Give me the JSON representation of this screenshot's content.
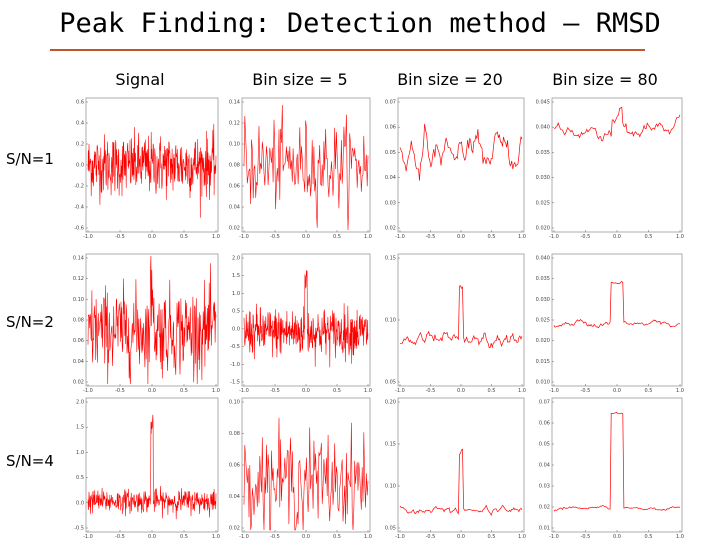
{
  "title": "Peak Finding: Detection method – RMSD",
  "columns": [
    "Signal",
    "Bin size = 5",
    "Bin size = 20",
    "Bin size = 80"
  ],
  "rows": [
    "S/N=1",
    "S/N=2",
    "S/N=4"
  ],
  "colors": {
    "trace": "#ff0000",
    "rule": "#c0542a",
    "frame": "#9a9a9a"
  },
  "chart_data": {
    "type": "line",
    "x_ticks": [
      "-1.0",
      "-0.5",
      "0.0",
      "0.5",
      "1.0"
    ],
    "panels": [
      {
        "row": "S/N=1",
        "column": "Signal",
        "y_ticks": [
          "0.6",
          "0.4",
          "0.2",
          "0.0",
          "-0.2",
          "-0.4",
          "-0.6"
        ],
        "ylim": [
          -0.6,
          0.6
        ],
        "noise": 0.14,
        "base": 0.0,
        "peak": 0.0,
        "peak_width": 0.0,
        "n": 400,
        "smooth": 1
      },
      {
        "row": "S/N=1",
        "column": "Bin size = 5",
        "y_ticks": [
          "0.14",
          "0.12",
          "0.10",
          "0.08",
          "0.06",
          "0.04",
          "0.02"
        ],
        "ylim": [
          0.02,
          0.14
        ],
        "noise": 0.02,
        "base": 0.08,
        "peak": 0.0,
        "peak_width": 0.0,
        "n": 150,
        "smooth": 1
      },
      {
        "row": "S/N=1",
        "column": "Bin size = 20",
        "y_ticks": [
          "0.07",
          "0.06",
          "0.05",
          "0.04",
          "0.03",
          "0.02"
        ],
        "ylim": [
          0.02,
          0.07
        ],
        "noise": 0.006,
        "base": 0.05,
        "peak": 0.0,
        "peak_width": 0.0,
        "n": 120,
        "smooth": 2
      },
      {
        "row": "S/N=1",
        "column": "Bin size = 80",
        "y_ticks": [
          "0.045",
          "0.040",
          "0.035",
          "0.030",
          "0.025",
          "0.020"
        ],
        "ylim": [
          0.02,
          0.045
        ],
        "noise": 0.0015,
        "base": 0.039,
        "peak": 0.003,
        "peak_width": 0.08,
        "n": 120,
        "smooth": 3
      },
      {
        "row": "S/N=2",
        "column": "Signal",
        "y_ticks": [
          "0.14",
          "0.12",
          "0.10",
          "0.08",
          "0.06",
          "0.04",
          "0.02"
        ],
        "ylim": [
          0.02,
          0.14
        ],
        "noise": 0.02,
        "base": 0.07,
        "peak": 0.035,
        "peak_width": 0.03,
        "n": 300,
        "smooth": 1
      },
      {
        "row": "S/N=2",
        "column": "Bin size = 5",
        "y_ticks": [
          "2.0",
          "1.5",
          "1.0",
          "0.5",
          "0.0",
          "-0.5",
          "-1.0",
          "-1.5"
        ],
        "ylim": [
          -1.5,
          2.2
        ],
        "noise": 0.35,
        "base": 0.0,
        "peak": 1.5,
        "peak_width": 0.02,
        "n": 400,
        "smooth": 1
      },
      {
        "row": "S/N=2",
        "column": "Bin size = 20",
        "y_ticks": [
          "0.15",
          "0.10",
          "0.05"
        ],
        "ylim": [
          0.0,
          0.15
        ],
        "noise": 0.008,
        "base": 0.05,
        "peak": 0.06,
        "peak_width": 0.03,
        "n": 120,
        "smooth": 2
      },
      {
        "row": "S/N=2",
        "column": "Bin size = 80",
        "y_ticks": [
          "0.040",
          "0.035",
          "0.030",
          "0.025",
          "0.020",
          "0.015",
          "0.010"
        ],
        "ylim": [
          0.01,
          0.042
        ],
        "noise": 0.0008,
        "base": 0.025,
        "peak": 0.01,
        "peak_width": 0.1,
        "n": 120,
        "smooth": 3
      },
      {
        "row": "S/N=4",
        "column": "Signal",
        "y_ticks": [
          "2.0",
          "1.5",
          "1.0",
          "0.5",
          "0.0",
          "-0.5"
        ],
        "ylim": [
          -0.6,
          2.1
        ],
        "noise": 0.12,
        "base": 0.0,
        "peak": 1.6,
        "peak_width": 0.02,
        "n": 400,
        "smooth": 1
      },
      {
        "row": "S/N=4",
        "column": "Bin size = 5",
        "y_ticks": [
          "0.10",
          "0.08",
          "0.06",
          "0.04",
          "0.02"
        ],
        "ylim": [
          0.02,
          0.1
        ],
        "noise": 0.015,
        "base": 0.05,
        "peak": 0.0,
        "peak_width": 0.0,
        "n": 150,
        "smooth": 1
      },
      {
        "row": "S/N=4",
        "column": "Bin size = 20",
        "y_ticks": [
          "0.20",
          "0.15",
          "0.10",
          "0.05"
        ],
        "ylim": [
          0.0,
          0.2
        ],
        "noise": 0.005,
        "base": 0.03,
        "peak": 0.09,
        "peak_width": 0.03,
        "n": 120,
        "smooth": 2
      },
      {
        "row": "S/N=4",
        "column": "Bin size = 80",
        "y_ticks": [
          "0.07",
          "0.06",
          "0.05",
          "0.04",
          "0.03",
          "0.02",
          "0.01"
        ],
        "ylim": [
          0.01,
          0.07
        ],
        "noise": 0.0008,
        "base": 0.02,
        "peak": 0.044,
        "peak_width": 0.1,
        "n": 120,
        "smooth": 3
      }
    ]
  }
}
